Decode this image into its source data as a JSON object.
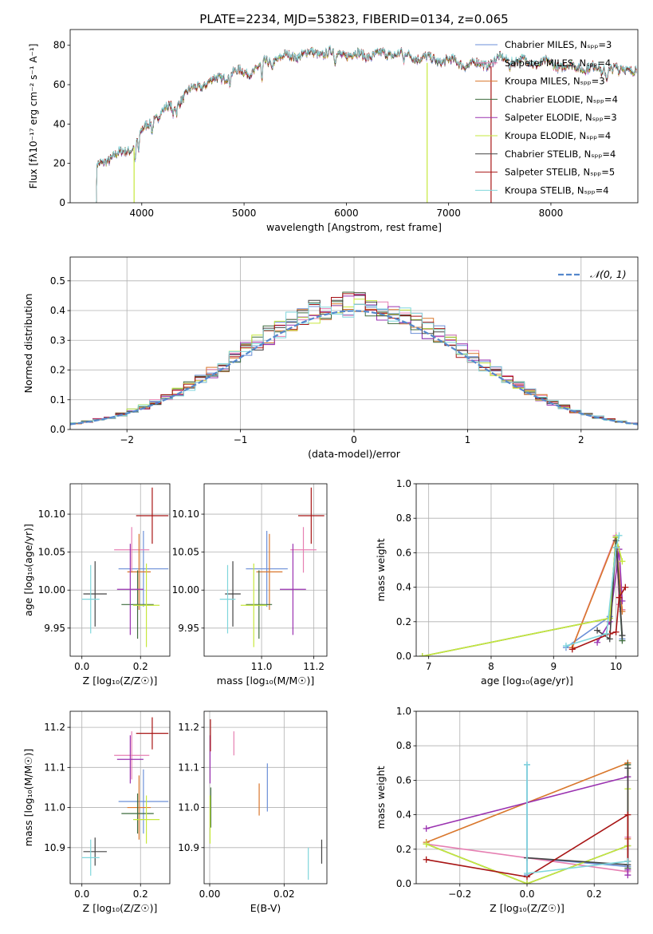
{
  "colors": {
    "Chabrier MILES": "#6b8fd8",
    "Salpeter MILES": "#e67fb2",
    "Kroupa MILES": "#d9772c",
    "Chabrier ELODIE": "#3d6b3d",
    "Salpeter ELODIE": "#9a32b0",
    "Kroupa ELODIE": "#c6e83c",
    "Chabrier STELIB": "#444444",
    "Salpeter STELIB": "#a81515",
    "Kroupa STELIB": "#7fd6dc",
    "normal": "#5588cc"
  },
  "chart_data": [
    {
      "id": "spectrum",
      "type": "line",
      "title": "PLATE=2234, MJD=53823, FIBERID=0134, z=0.065",
      "xlabel": "wavelength [Angstrom, rest frame]",
      "ylabel": "Flux [fλ10⁻¹⁷ erg cm⁻² s⁻¹ A⁻¹]",
      "xlim": [
        3300,
        8850
      ],
      "ylim": [
        0,
        88
      ],
      "xticks": [
        4000,
        5000,
        6000,
        7000,
        8000
      ],
      "yticks": [
        0,
        20,
        40,
        60,
        80
      ],
      "legend_position": "top-right",
      "series": [
        {
          "name": "Chabrier MILES",
          "label": "Chabrier MILES, Nₛₚₚ=3"
        },
        {
          "name": "Salpeter MILES",
          "label": "Salpeter MILES, Nₛₚₚ=4"
        },
        {
          "name": "Kroupa MILES",
          "label": "Kroupa MILES, Nₛₚₚ=3"
        },
        {
          "name": "Chabrier ELODIE",
          "label": "Chabrier ELODIE, Nₛₚₚ=4"
        },
        {
          "name": "Salpeter ELODIE",
          "label": "Salpeter ELODIE, Nₛₚₚ=3"
        },
        {
          "name": "Kroupa ELODIE",
          "label": "Kroupa ELODIE, Nₛₚₚ=4"
        },
        {
          "name": "Chabrier STELIB",
          "label": "Chabrier STELIB, Nₛₚₚ=4"
        },
        {
          "name": "Salpeter STELIB",
          "label": "Salpeter STELIB, Nₛₚₚ=5"
        },
        {
          "name": "Kroupa STELIB",
          "label": "Kroupa STELIB, Nₛₚₚ=4"
        }
      ],
      "continuum": [
        [
          3550,
          18
        ],
        [
          3650,
          22
        ],
        [
          3800,
          25
        ],
        [
          3900,
          28
        ],
        [
          4000,
          36
        ],
        [
          4100,
          42
        ],
        [
          4200,
          46
        ],
        [
          4350,
          51
        ],
        [
          4500,
          58
        ],
        [
          4700,
          62
        ],
        [
          4900,
          66
        ],
        [
          5100,
          67
        ],
        [
          5200,
          71
        ],
        [
          5300,
          73
        ],
        [
          5500,
          75
        ],
        [
          5700,
          76
        ],
        [
          5900,
          76
        ],
        [
          6100,
          75
        ],
        [
          6300,
          75
        ],
        [
          6500,
          76
        ],
        [
          6600,
          75
        ],
        [
          6800,
          73
        ],
        [
          7000,
          72
        ],
        [
          7200,
          70
        ],
        [
          7400,
          71
        ],
        [
          7500,
          73
        ],
        [
          7700,
          72
        ],
        [
          7900,
          71
        ],
        [
          8200,
          69
        ],
        [
          8500,
          68
        ],
        [
          8800,
          68
        ]
      ],
      "absorption": [
        [
          3935,
          -10
        ],
        [
          3970,
          -8
        ],
        [
          4102,
          -5
        ],
        [
          4305,
          -6
        ],
        [
          4340,
          -4
        ],
        [
          4861,
          -4
        ],
        [
          5175,
          -10
        ],
        [
          5270,
          -4
        ],
        [
          5890,
          -7
        ],
        [
          6563,
          -6
        ],
        [
          7600,
          -3
        ],
        [
          8500,
          -3
        ],
        [
          8545,
          -4
        ],
        [
          8665,
          -3
        ]
      ],
      "drop_lines": [
        {
          "name": "Kroupa ELODIE",
          "x": 3925
        },
        {
          "name": "Kroupa ELODIE",
          "x": 6790
        },
        {
          "name": "Salpeter STELIB",
          "x": 7415
        }
      ]
    },
    {
      "id": "residuals",
      "type": "histogram",
      "xlabel": "(data-model)/error",
      "ylabel": "Normed distribution",
      "xlim": [
        -2.5,
        2.5
      ],
      "ylim": [
        0,
        0.58
      ],
      "xticks": [
        -2,
        -1,
        0,
        1,
        2
      ],
      "yticks": [
        0.0,
        0.1,
        0.2,
        0.3,
        0.4,
        0.5
      ],
      "legend_position": "top-right",
      "bin_width": 0.1,
      "reference": {
        "name": "normal",
        "label": "𝒩(0, 1)",
        "mean": 0,
        "sigma": 1
      }
    },
    {
      "id": "age_vs_Z",
      "type": "errorbar",
      "xlabel": "Z [log₁₀(Z/Z☉)]",
      "ylabel": "age  [log₁₀(age/yr)]",
      "xlim": [
        -0.04,
        0.3
      ],
      "ylim": [
        9.913,
        10.14
      ],
      "xticks": [
        0.0,
        0.2
      ],
      "yticks": [
        9.95,
        10.0,
        10.05,
        10.1
      ],
      "points": [
        {
          "name": "Chabrier MILES",
          "x": 0.21,
          "xerr": 0.085,
          "y": 10.028,
          "yerr": 0.05
        },
        {
          "name": "Salpeter MILES",
          "x": 0.17,
          "xerr": 0.06,
          "y": 10.053,
          "yerr": 0.03
        },
        {
          "name": "Kroupa MILES",
          "x": 0.195,
          "xerr": 0.04,
          "y": 10.024,
          "yerr": 0.05
        },
        {
          "name": "Chabrier ELODIE",
          "x": 0.19,
          "xerr": 0.055,
          "y": 9.981,
          "yerr": 0.045
        },
        {
          "name": "Salpeter ELODIE",
          "x": 0.165,
          "xerr": 0.045,
          "y": 10.001,
          "yerr": 0.06
        },
        {
          "name": "Kroupa ELODIE",
          "x": 0.22,
          "xerr": 0.045,
          "y": 9.98,
          "yerr": 0.055
        },
        {
          "name": "Chabrier STELIB",
          "x": 0.045,
          "xerr": 0.04,
          "y": 9.995,
          "yerr": 0.043
        },
        {
          "name": "Salpeter STELIB",
          "x": 0.24,
          "xerr": 0.055,
          "y": 10.098,
          "yerr": 0.037
        },
        {
          "name": "Kroupa STELIB",
          "x": 0.03,
          "xerr": 0.03,
          "y": 9.988,
          "yerr": 0.045
        }
      ]
    },
    {
      "id": "age_vs_mass",
      "type": "errorbar",
      "xlabel": "mass [log₁₀(M/M☉)]",
      "ylabel": "",
      "xlim": [
        10.78,
        11.25
      ],
      "ylim": [
        9.913,
        10.14
      ],
      "xticks": [
        11.0,
        11.2
      ],
      "yticks": [
        9.95,
        10.0,
        10.05,
        10.1
      ],
      "points": [
        {
          "name": "Chabrier MILES",
          "x": 11.02,
          "xerr": 0.08,
          "y": 10.028,
          "yerr": 0.05
        },
        {
          "name": "Salpeter MILES",
          "x": 11.16,
          "xerr": 0.05,
          "y": 10.053,
          "yerr": 0.03
        },
        {
          "name": "Kroupa MILES",
          "x": 11.03,
          "xerr": 0.05,
          "y": 10.024,
          "yerr": 0.05
        },
        {
          "name": "Chabrier ELODIE",
          "x": 10.99,
          "xerr": 0.05,
          "y": 9.981,
          "yerr": 0.045
        },
        {
          "name": "Salpeter ELODIE",
          "x": 11.12,
          "xerr": 0.05,
          "y": 10.001,
          "yerr": 0.06
        },
        {
          "name": "Kroupa ELODIE",
          "x": 10.97,
          "xerr": 0.05,
          "y": 9.98,
          "yerr": 0.055
        },
        {
          "name": "Chabrier STELIB",
          "x": 10.89,
          "xerr": 0.03,
          "y": 9.995,
          "yerr": 0.043
        },
        {
          "name": "Salpeter STELIB",
          "x": 11.19,
          "xerr": 0.05,
          "y": 10.098,
          "yerr": 0.037
        },
        {
          "name": "Kroupa STELIB",
          "x": 10.87,
          "xerr": 0.03,
          "y": 9.988,
          "yerr": 0.045
        }
      ]
    },
    {
      "id": "weight_vs_age",
      "type": "line",
      "xlabel": "age  [log₁₀(age/yr)]",
      "ylabel": "mass weight",
      "xlim": [
        6.8,
        10.35
      ],
      "ylim": [
        0,
        1.0
      ],
      "xticks": [
        7,
        8,
        9,
        10
      ],
      "yticks": [
        0.0,
        0.2,
        0.4,
        0.6,
        0.8,
        1.0
      ],
      "series": [
        {
          "name": "Chabrier MILES",
          "points": [
            [
              9.2,
              0.05
            ],
            [
              9.9,
              0.23
            ],
            [
              10.0,
              0.63
            ],
            [
              10.1,
              0.1
            ]
          ]
        },
        {
          "name": "Salpeter MILES",
          "points": [
            [
              9.3,
              0.05
            ],
            [
              10.0,
              0.7
            ],
            [
              10.05,
              0.3
            ],
            [
              10.1,
              0.27
            ]
          ]
        },
        {
          "name": "Kroupa MILES",
          "points": [
            [
              9.3,
              0.05
            ],
            [
              10.0,
              0.69
            ],
            [
              10.1,
              0.26
            ]
          ]
        },
        {
          "name": "Chabrier ELODIE",
          "points": [
            [
              6.9,
              0.0
            ],
            [
              9.9,
              0.22
            ],
            [
              10.0,
              0.69
            ],
            [
              10.1,
              0.09
            ]
          ]
        },
        {
          "name": "Salpeter ELODIE",
          "points": [
            [
              9.7,
              0.08
            ],
            [
              9.9,
              0.2
            ],
            [
              10.05,
              0.62
            ],
            [
              10.1,
              0.32
            ]
          ]
        },
        {
          "name": "Kroupa ELODIE",
          "points": [
            [
              6.9,
              0.0
            ],
            [
              9.9,
              0.22
            ],
            [
              10.0,
              0.69
            ],
            [
              10.1,
              0.55
            ]
          ]
        },
        {
          "name": "Chabrier STELIB",
          "points": [
            [
              9.7,
              0.15
            ],
            [
              9.9,
              0.1
            ],
            [
              10.0,
              0.67
            ],
            [
              10.1,
              0.12
            ]
          ]
        },
        {
          "name": "Salpeter STELIB",
          "points": [
            [
              9.3,
              0.04
            ],
            [
              9.9,
              0.13
            ],
            [
              10.0,
              0.14
            ],
            [
              10.05,
              0.34
            ],
            [
              10.15,
              0.4
            ]
          ]
        },
        {
          "name": "Kroupa STELIB",
          "points": [
            [
              9.2,
              0.06
            ],
            [
              9.85,
              0.13
            ],
            [
              10.0,
              0.63
            ],
            [
              10.05,
              0.7
            ]
          ]
        }
      ]
    },
    {
      "id": "mass_vs_Z",
      "type": "errorbar",
      "xlabel": "Z [log₁₀(Z/Z☉)]",
      "ylabel": "mass [log₁₀(M/M☉)]",
      "xlim": [
        -0.04,
        0.3
      ],
      "ylim": [
        10.81,
        11.24
      ],
      "xticks": [
        0.0,
        0.2
      ],
      "yticks": [
        10.9,
        11.0,
        11.1,
        11.2
      ],
      "points": [
        {
          "name": "Chabrier MILES",
          "x": 0.21,
          "xerr": 0.085,
          "y": 11.015,
          "yerr": 0.08
        },
        {
          "name": "Salpeter MILES",
          "x": 0.17,
          "xerr": 0.06,
          "y": 11.13,
          "yerr": 0.06
        },
        {
          "name": "Kroupa MILES",
          "x": 0.195,
          "xerr": 0.04,
          "y": 11.0,
          "yerr": 0.08
        },
        {
          "name": "Chabrier ELODIE",
          "x": 0.19,
          "xerr": 0.055,
          "y": 10.985,
          "yerr": 0.05
        },
        {
          "name": "Salpeter ELODIE",
          "x": 0.165,
          "xerr": 0.045,
          "y": 11.12,
          "yerr": 0.06
        },
        {
          "name": "Kroupa ELODIE",
          "x": 0.22,
          "xerr": 0.045,
          "y": 10.97,
          "yerr": 0.06
        },
        {
          "name": "Chabrier STELIB",
          "x": 0.045,
          "xerr": 0.04,
          "y": 10.89,
          "yerr": 0.035
        },
        {
          "name": "Salpeter STELIB",
          "x": 0.24,
          "xerr": 0.055,
          "y": 11.185,
          "yerr": 0.04
        },
        {
          "name": "Kroupa STELIB",
          "x": 0.03,
          "xerr": 0.03,
          "y": 10.875,
          "yerr": 0.045
        }
      ]
    },
    {
      "id": "mass_vs_EBV",
      "type": "errorbar",
      "xlabel": "E(B-V)",
      "ylabel": "",
      "xlim": [
        -0.0015,
        0.0315
      ],
      "ylim": [
        10.81,
        11.24
      ],
      "xticks": [
        0.0,
        0.02
      ],
      "yticks": [
        10.9,
        11.0,
        11.1,
        11.2
      ],
      "points": [
        {
          "name": "Chabrier MILES",
          "x": 0.0155,
          "xerr": 0,
          "y": 11.05,
          "yerr": 0.06
        },
        {
          "name": "Salpeter MILES",
          "x": 0.0065,
          "xerr": 0,
          "y": 11.16,
          "yerr": 0.03
        },
        {
          "name": "Kroupa MILES",
          "x": 0.0133,
          "xerr": 0,
          "y": 11.02,
          "yerr": 0.04
        },
        {
          "name": "Chabrier ELODIE",
          "x": 0.0003,
          "xerr": 0,
          "y": 11.0,
          "yerr": 0.05
        },
        {
          "name": "Salpeter ELODIE",
          "x": 0.0001,
          "xerr": 0,
          "y": 11.12,
          "yerr": 0.06
        },
        {
          "name": "Kroupa ELODIE",
          "x": 0.0001,
          "xerr": 0,
          "y": 10.97,
          "yerr": 0.06
        },
        {
          "name": "Chabrier STELIB",
          "x": 0.0301,
          "xerr": 0,
          "y": 10.89,
          "yerr": 0.03
        },
        {
          "name": "Salpeter STELIB",
          "x": 0.0002,
          "xerr": 0,
          "y": 11.18,
          "yerr": 0.04
        },
        {
          "name": "Kroupa STELIB",
          "x": 0.0265,
          "xerr": 0,
          "y": 10.86,
          "yerr": 0.04
        }
      ]
    },
    {
      "id": "weight_vs_Z",
      "type": "line",
      "xlabel": "Z [log₁₀(Z/Z☉)]",
      "ylabel": "mass weight",
      "xlim": [
        -0.33,
        0.33
      ],
      "ylim": [
        0,
        1.0
      ],
      "xticks": [
        -0.2,
        0.0,
        0.2
      ],
      "yticks": [
        0.0,
        0.2,
        0.4,
        0.6,
        0.8,
        1.0
      ],
      "series": [
        {
          "name": "Chabrier MILES",
          "points": [
            [
              0.3,
              0.1
            ],
            [
              0.0,
              0.15
            ],
            [
              0.0,
              0.69
            ],
            [
              0.0,
              0.05
            ]
          ]
        },
        {
          "name": "Salpeter MILES",
          "points": [
            [
              -0.3,
              0.23
            ],
            [
              0.3,
              0.07
            ],
            [
              0.3,
              0.27
            ],
            [
              0.3,
              0.7
            ]
          ]
        },
        {
          "name": "Kroupa MILES",
          "points": [
            [
              -0.3,
              0.24
            ],
            [
              0.3,
              0.7
            ],
            [
              0.3,
              0.26
            ]
          ]
        },
        {
          "name": "Chabrier ELODIE",
          "points": [
            [
              -0.3,
              0.23
            ],
            [
              0.0,
              0.0
            ],
            [
              0.3,
              0.22
            ],
            [
              0.3,
              0.69
            ],
            [
              0.3,
              0.09
            ]
          ]
        },
        {
          "name": "Salpeter ELODIE",
          "points": [
            [
              -0.3,
              0.32
            ],
            [
              0.3,
              0.62
            ],
            [
              0.3,
              0.08
            ],
            [
              0.3,
              0.05
            ]
          ]
        },
        {
          "name": "Kroupa ELODIE",
          "points": [
            [
              -0.3,
              0.23
            ],
            [
              0.0,
              0.0
            ],
            [
              0.3,
              0.22
            ],
            [
              0.3,
              0.55
            ]
          ]
        },
        {
          "name": "Chabrier STELIB",
          "points": [
            [
              0.0,
              0.15
            ],
            [
              0.3,
              0.11
            ],
            [
              0.3,
              0.67
            ]
          ]
        },
        {
          "name": "Salpeter STELIB",
          "points": [
            [
              -0.3,
              0.14
            ],
            [
              0.0,
              0.04
            ],
            [
              0.3,
              0.4
            ],
            [
              0.3,
              0.13
            ]
          ]
        },
        {
          "name": "Kroupa STELIB",
          "points": [
            [
              0.0,
              0.69
            ],
            [
              0.0,
              0.06
            ],
            [
              0.3,
              0.13
            ]
          ]
        }
      ]
    }
  ]
}
